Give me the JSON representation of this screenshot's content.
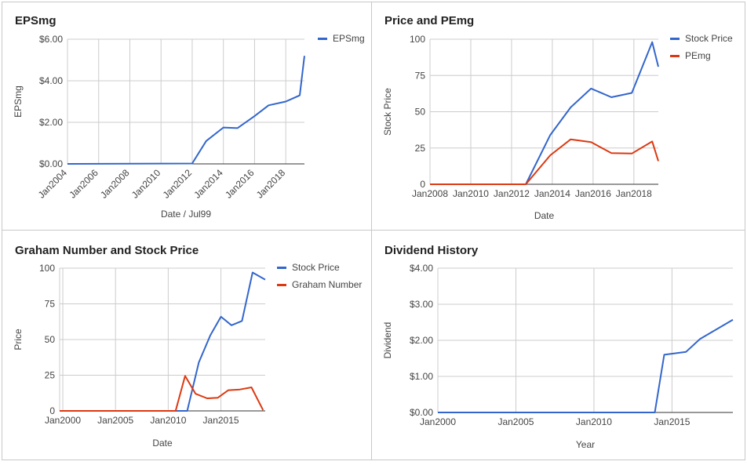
{
  "chart_data": [
    {
      "type": "line",
      "title": "EPSmg",
      "xlabel": "Date / Jul99",
      "ylabel": "EPSmg",
      "xticks": [
        "Jan2004",
        "Jan2006",
        "Jan2008",
        "Jan2010",
        "Jan2012",
        "Jan2014",
        "Jan2016",
        "Jan2018"
      ],
      "yticks": [
        "$0.00",
        "$2.00",
        "$4.00",
        "$6.00"
      ],
      "xlim": [
        2004.0,
        2019.2
      ],
      "ylim": [
        0,
        6
      ],
      "grid": true,
      "legend": "right",
      "series": [
        {
          "name": "EPSmg",
          "color": "#3366cc",
          "x": [
            2004.0,
            2012.0,
            2012.9,
            2014.0,
            2014.9,
            2016.0,
            2016.9,
            2018.0,
            2018.9,
            2019.2
          ],
          "y": [
            0,
            0.02,
            1.1,
            1.75,
            1.72,
            2.3,
            2.82,
            3.0,
            3.3,
            5.2
          ]
        }
      ]
    },
    {
      "type": "line",
      "title": "Price and PEmg",
      "xlabel": "Date",
      "ylabel": "Stock Price",
      "xticks": [
        "Jan2008",
        "Jan2010",
        "Jan2012",
        "Jan2014",
        "Jan2016",
        "Jan2018"
      ],
      "yticks": [
        "0",
        "25",
        "50",
        "75",
        "100"
      ],
      "xlim": [
        2008.0,
        2019.2
      ],
      "ylim": [
        0,
        100
      ],
      "grid": true,
      "legend": "right",
      "series": [
        {
          "name": "Stock Price",
          "color": "#3366cc",
          "x": [
            2008.0,
            2012.7,
            2013.9,
            2014.9,
            2015.9,
            2016.9,
            2017.9,
            2018.9,
            2019.2
          ],
          "y": [
            0,
            0,
            34,
            53,
            66,
            60,
            63,
            98,
            81
          ]
        },
        {
          "name": "PEmg",
          "color": "#dc3912",
          "x": [
            2008.0,
            2012.7,
            2013.9,
            2014.9,
            2015.9,
            2016.9,
            2017.9,
            2018.9,
            2019.2
          ],
          "y": [
            0,
            0,
            20,
            31,
            29,
            21.5,
            21.2,
            29.5,
            16
          ]
        }
      ]
    },
    {
      "type": "line",
      "title": "Graham Number and Stock Price",
      "xlabel": "Date",
      "ylabel": "Price",
      "xticks": [
        "Jan2000",
        "Jan2005",
        "Jan2010",
        "Jan2015"
      ],
      "yticks": [
        "0",
        "25",
        "50",
        "75",
        "100"
      ],
      "xlim": [
        1999.7,
        2019.2
      ],
      "ylim": [
        0,
        100
      ],
      "grid": true,
      "legend": "right",
      "series": [
        {
          "name": "Stock Price",
          "color": "#3366cc",
          "x": [
            1999.7,
            2011.8,
            2012.9,
            2014.0,
            2015.0,
            2016.0,
            2017.0,
            2018.0,
            2019.2
          ],
          "y": [
            0,
            0,
            34,
            53,
            66,
            60,
            63,
            97,
            92
          ]
        },
        {
          "name": "Graham Number",
          "color": "#dc3912",
          "x": [
            1999.7,
            2010.7,
            2011.6,
            2012.6,
            2013.7,
            2014.7,
            2015.7,
            2016.8,
            2017.9,
            2019.0
          ],
          "y": [
            0,
            0,
            24.5,
            12,
            8.8,
            9.2,
            14.5,
            15,
            16.5,
            0.5
          ]
        }
      ]
    },
    {
      "type": "line",
      "title": "Dividend History",
      "xlabel": "Year",
      "ylabel": "Dividend",
      "xticks": [
        "Jan2000",
        "Jan2005",
        "Jan2010",
        "Jan2015"
      ],
      "yticks": [
        "$0.00",
        "$1.00",
        "$2.00",
        "$3.00",
        "$4.00"
      ],
      "xlim": [
        2000.0,
        2018.9
      ],
      "ylim": [
        0,
        4
      ],
      "grid": true,
      "legend": "none",
      "series": [
        {
          "color": "#3366cc",
          "x": [
            2000.0,
            2013.9,
            2014.5,
            2015.9,
            2016.8,
            2018.9
          ],
          "y": [
            0,
            0,
            1.6,
            1.68,
            2.04,
            2.57
          ]
        }
      ]
    }
  ]
}
